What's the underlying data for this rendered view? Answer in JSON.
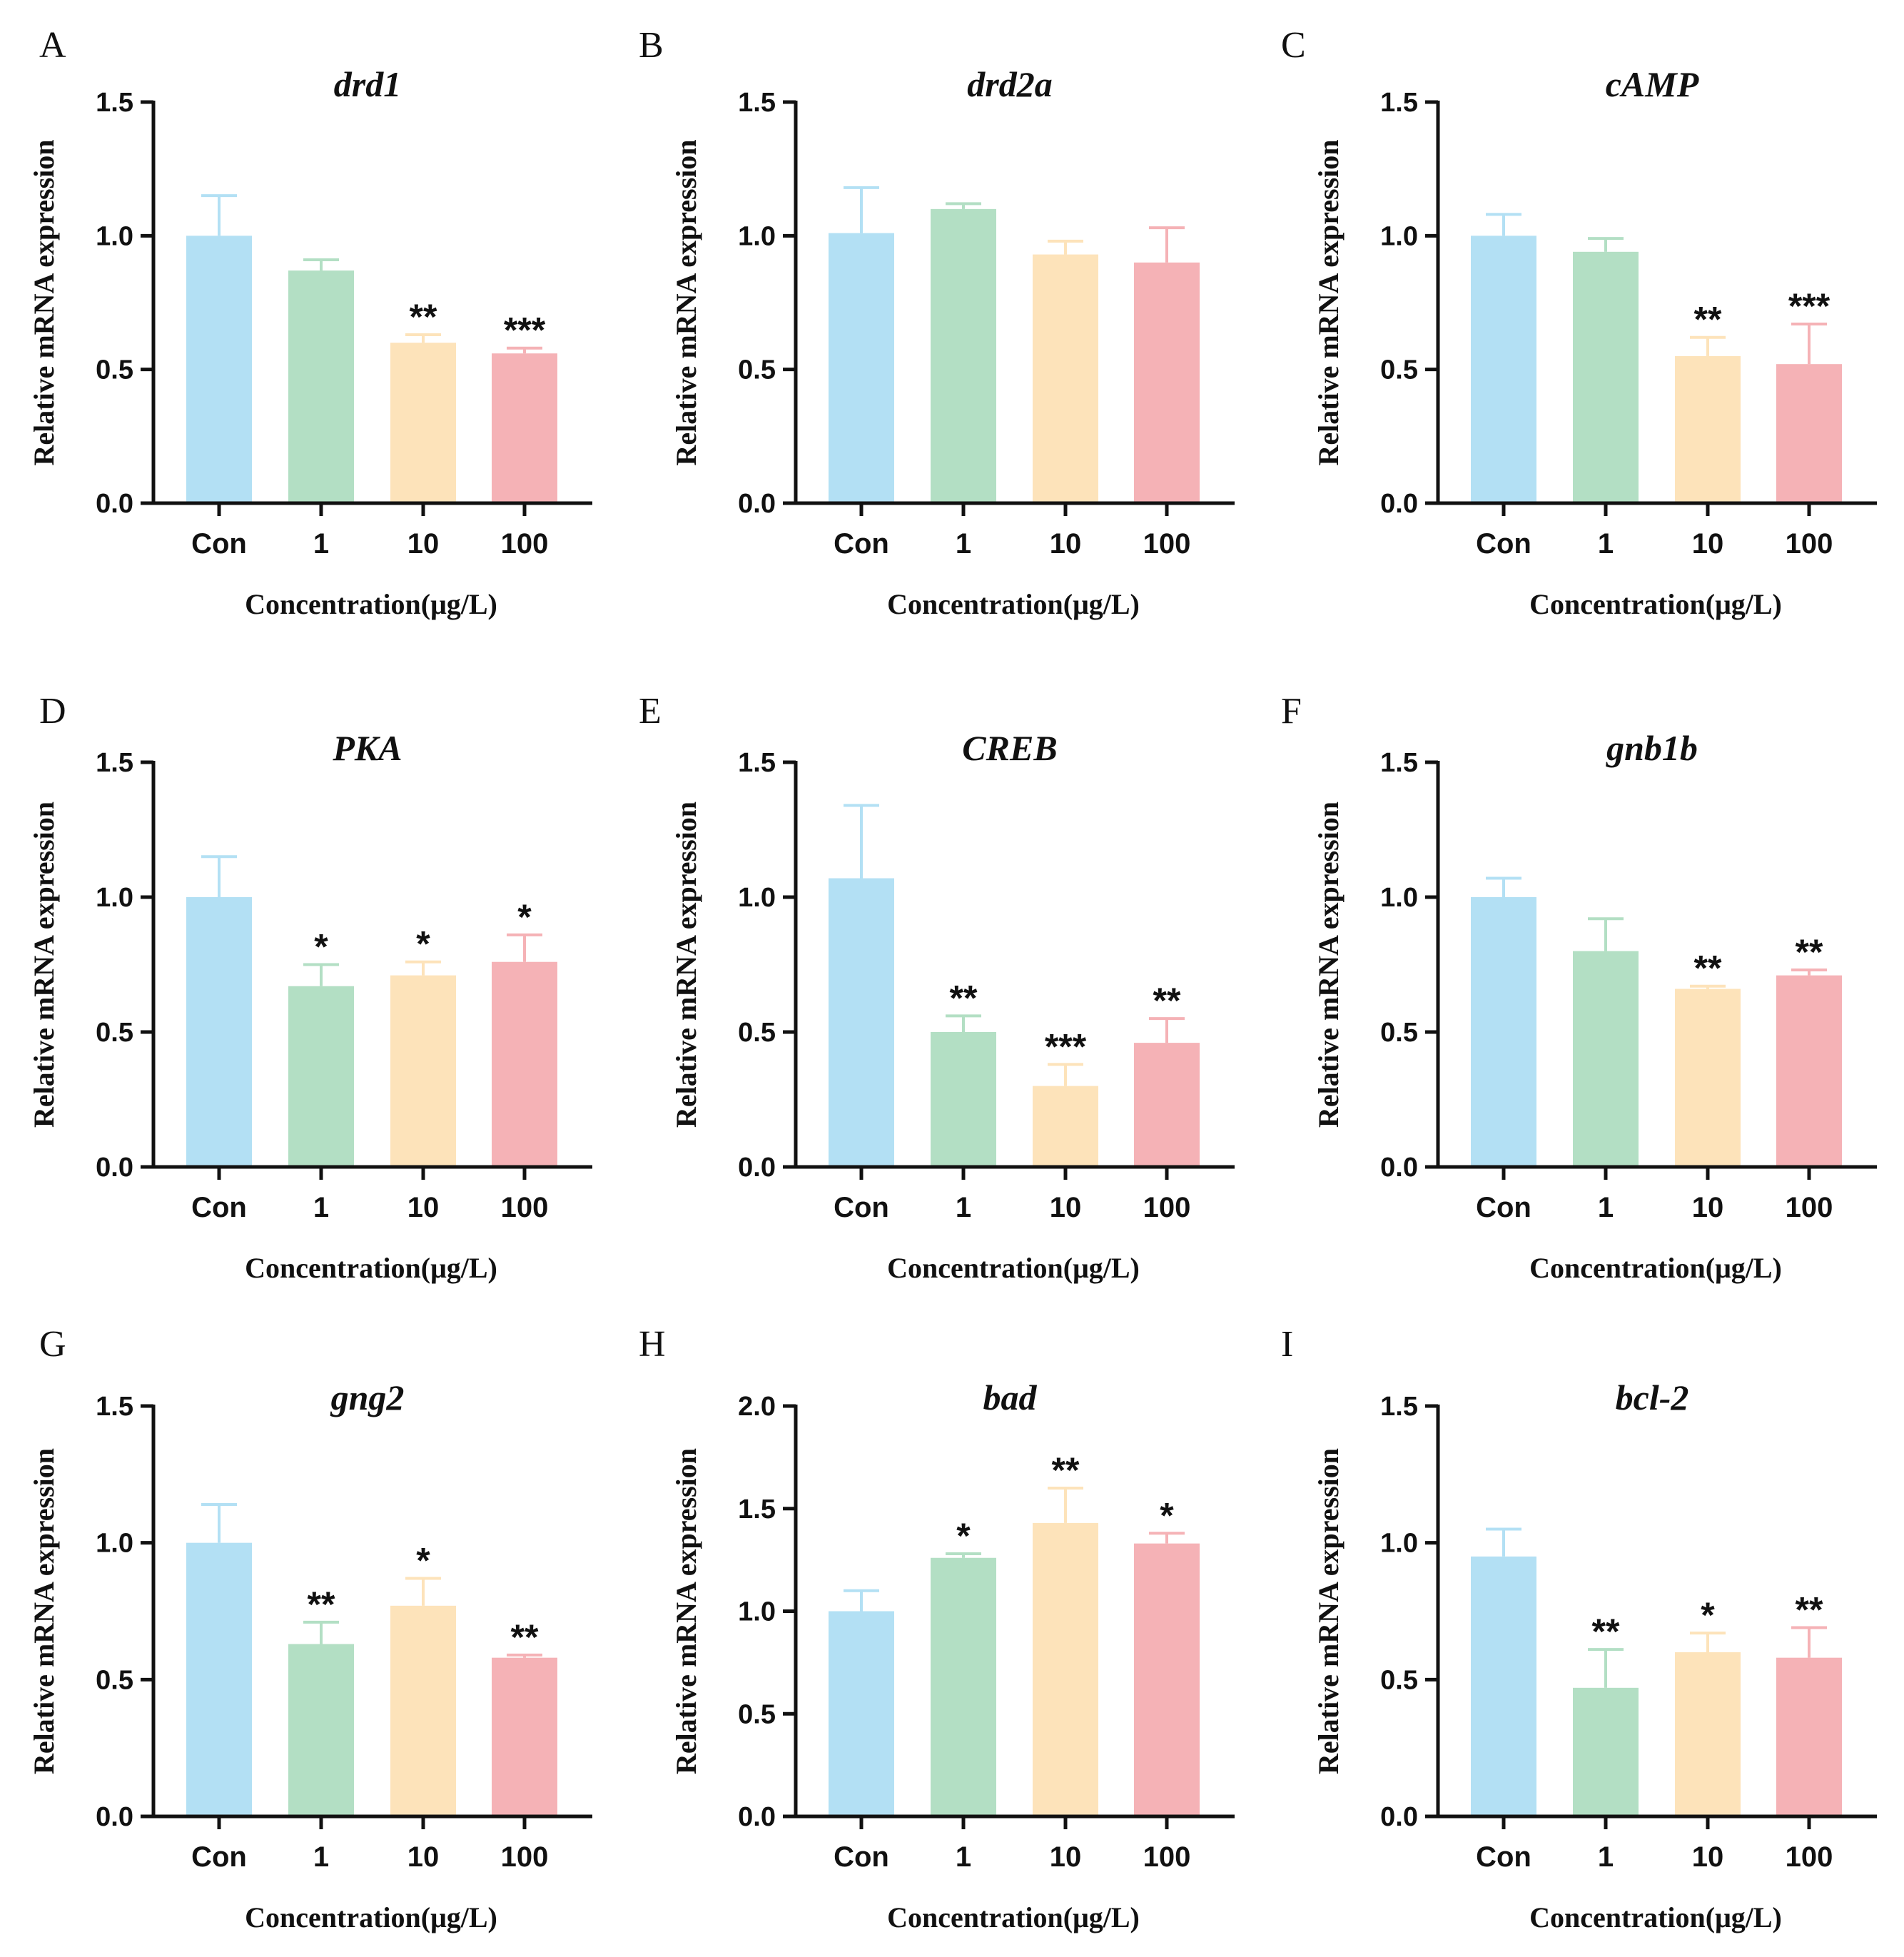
{
  "colors": {
    "Con": "#b3e0f4",
    "1": "#b3dfc4",
    "10": "#fde3ba",
    "100": "#f5b2b6",
    "axis": "#111111"
  },
  "figure": {
    "x_axis_label": "Concentration(μg/L)",
    "y_axis_label": "Relative mRNA expression"
  },
  "chart_data": [
    {
      "panel": "A",
      "title": "drd1",
      "type": "bar",
      "categories": [
        "Con",
        "1",
        "10",
        "100"
      ],
      "values": [
        1.0,
        0.87,
        0.6,
        0.56
      ],
      "errors": [
        0.15,
        0.04,
        0.03,
        0.02
      ],
      "significance": [
        "",
        "",
        "**",
        "***"
      ],
      "ylim": [
        0,
        1.5
      ],
      "yticks": [
        "0.0",
        "0.5",
        "1.0",
        "1.5"
      ],
      "xlabel": "Concentration(μg/L)",
      "ylabel": "Relative mRNA expression"
    },
    {
      "panel": "B",
      "title": "drd2a",
      "type": "bar",
      "categories": [
        "Con",
        "1",
        "10",
        "100"
      ],
      "values": [
        1.01,
        1.1,
        0.93,
        0.9
      ],
      "errors": [
        0.17,
        0.02,
        0.05,
        0.13
      ],
      "significance": [
        "",
        "",
        "",
        ""
      ],
      "ylim": [
        0,
        1.5
      ],
      "yticks": [
        "0.0",
        "0.5",
        "1.0",
        "1.5"
      ],
      "xlabel": "Concentration(μg/L)",
      "ylabel": "Relative mRNA expression"
    },
    {
      "panel": "C",
      "title": "cAMP",
      "type": "bar",
      "categories": [
        "Con",
        "1",
        "10",
        "100"
      ],
      "values": [
        1.0,
        0.94,
        0.55,
        0.52
      ],
      "errors": [
        0.08,
        0.05,
        0.07,
        0.15
      ],
      "significance": [
        "",
        "",
        "**",
        "***"
      ],
      "ylim": [
        0,
        1.5
      ],
      "yticks": [
        "0.0",
        "0.5",
        "1.0",
        "1.5"
      ],
      "xlabel": "Concentration(μg/L)",
      "ylabel": "Relative mRNA expression"
    },
    {
      "panel": "D",
      "title": "PKA",
      "type": "bar",
      "categories": [
        "Con",
        "1",
        "10",
        "100"
      ],
      "values": [
        1.0,
        0.67,
        0.71,
        0.76
      ],
      "errors": [
        0.15,
        0.08,
        0.05,
        0.1
      ],
      "significance": [
        "",
        "*",
        "*",
        "*"
      ],
      "ylim": [
        0,
        1.5
      ],
      "yticks": [
        "0.0",
        "0.5",
        "1.0",
        "1.5"
      ],
      "xlabel": "Concentration(μg/L)",
      "ylabel": "Relative mRNA expression"
    },
    {
      "panel": "E",
      "title": "CREB",
      "type": "bar",
      "categories": [
        "Con",
        "1",
        "10",
        "100"
      ],
      "values": [
        1.07,
        0.5,
        0.3,
        0.46
      ],
      "errors": [
        0.27,
        0.06,
        0.08,
        0.09
      ],
      "significance": [
        "",
        "**",
        "***",
        "**"
      ],
      "ylim": [
        0,
        1.5
      ],
      "yticks": [
        "0.0",
        "0.5",
        "1.0",
        "1.5"
      ],
      "xlabel": "Concentration(μg/L)",
      "ylabel": "Relative mRNA expression"
    },
    {
      "panel": "F",
      "title": "gnb1b",
      "type": "bar",
      "categories": [
        "Con",
        "1",
        "10",
        "100"
      ],
      "values": [
        1.0,
        0.8,
        0.66,
        0.71
      ],
      "errors": [
        0.07,
        0.12,
        0.01,
        0.02
      ],
      "significance": [
        "",
        "",
        "**",
        "**"
      ],
      "ylim": [
        0,
        1.5
      ],
      "yticks": [
        "0.0",
        "0.5",
        "1.0",
        "1.5"
      ],
      "xlabel": "Concentration(μg/L)",
      "ylabel": "Relative mRNA expression"
    },
    {
      "panel": "G",
      "title": "gng2",
      "type": "bar",
      "categories": [
        "Con",
        "1",
        "10",
        "100"
      ],
      "values": [
        1.0,
        0.63,
        0.77,
        0.58
      ],
      "errors": [
        0.14,
        0.08,
        0.1,
        0.01
      ],
      "significance": [
        "",
        "**",
        "*",
        "**"
      ],
      "ylim": [
        0,
        1.5
      ],
      "yticks": [
        "0.0",
        "0.5",
        "1.0",
        "1.5"
      ],
      "xlabel": "Concentration(μg/L)",
      "ylabel": "Relative mRNA expression"
    },
    {
      "panel": "H",
      "title": "bad",
      "type": "bar",
      "categories": [
        "Con",
        "1",
        "10",
        "100"
      ],
      "values": [
        1.0,
        1.26,
        1.43,
        1.33
      ],
      "errors": [
        0.1,
        0.02,
        0.17,
        0.05
      ],
      "significance": [
        "",
        "*",
        "**",
        "*"
      ],
      "ylim": [
        0,
        2.0
      ],
      "yticks": [
        "0.0",
        "0.5",
        "1.0",
        "1.5",
        "2.0"
      ],
      "xlabel": "Concentration(μg/L)",
      "ylabel": "Relative mRNA expression"
    },
    {
      "panel": "I",
      "title": "bcl-2",
      "type": "bar",
      "categories": [
        "Con",
        "1",
        "10",
        "100"
      ],
      "values": [
        0.95,
        0.47,
        0.6,
        0.58
      ],
      "errors": [
        0.1,
        0.14,
        0.07,
        0.11
      ],
      "significance": [
        "",
        "**",
        "*",
        "**"
      ],
      "ylim": [
        0,
        1.5
      ],
      "yticks": [
        "0.0",
        "0.5",
        "1.0",
        "1.5"
      ],
      "xlabel": "Concentration(μg/L)",
      "ylabel": "Relative mRNA expression"
    }
  ]
}
